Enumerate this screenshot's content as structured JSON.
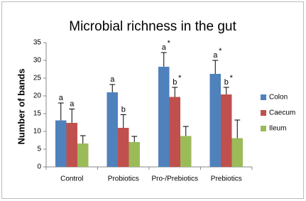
{
  "chart_data": {
    "type": "bar",
    "title": "Microbial richness in the gut",
    "y_label": "Number of bands",
    "categories": [
      "Control",
      "Probiotics",
      "Pro-/Prebiotics",
      "Prebiotics"
    ],
    "series": [
      {
        "name": "Colon",
        "color": "#4f81bd",
        "values": [
          13.1,
          21,
          28.2,
          26.2
        ],
        "errors": [
          4.9,
          2.2,
          4.0,
          3.8
        ],
        "letters": [
          "a",
          "a",
          "a",
          "a"
        ],
        "stars": [
          null,
          null,
          "*",
          "*"
        ]
      },
      {
        "name": "Caecum",
        "color": "#c0504d",
        "values": [
          12.4,
          11,
          19.7,
          20.4
        ],
        "errors": [
          3.9,
          3.7,
          2.7,
          2.0
        ],
        "letters": [
          "a",
          "b",
          "b",
          "b"
        ],
        "stars": [
          null,
          null,
          "*",
          "*"
        ]
      },
      {
        "name": "Ileum",
        "color": "#9bbb59",
        "values": [
          6.6,
          7,
          8.7,
          8.1
        ],
        "errors": [
          2.2,
          1.6,
          2.7,
          5.1
        ]
      }
    ],
    "ylim": [
      0,
      35
    ],
    "yticks": [
      0,
      5,
      10,
      15,
      20,
      25,
      30,
      35
    ],
    "grid": false,
    "legend": "right"
  }
}
